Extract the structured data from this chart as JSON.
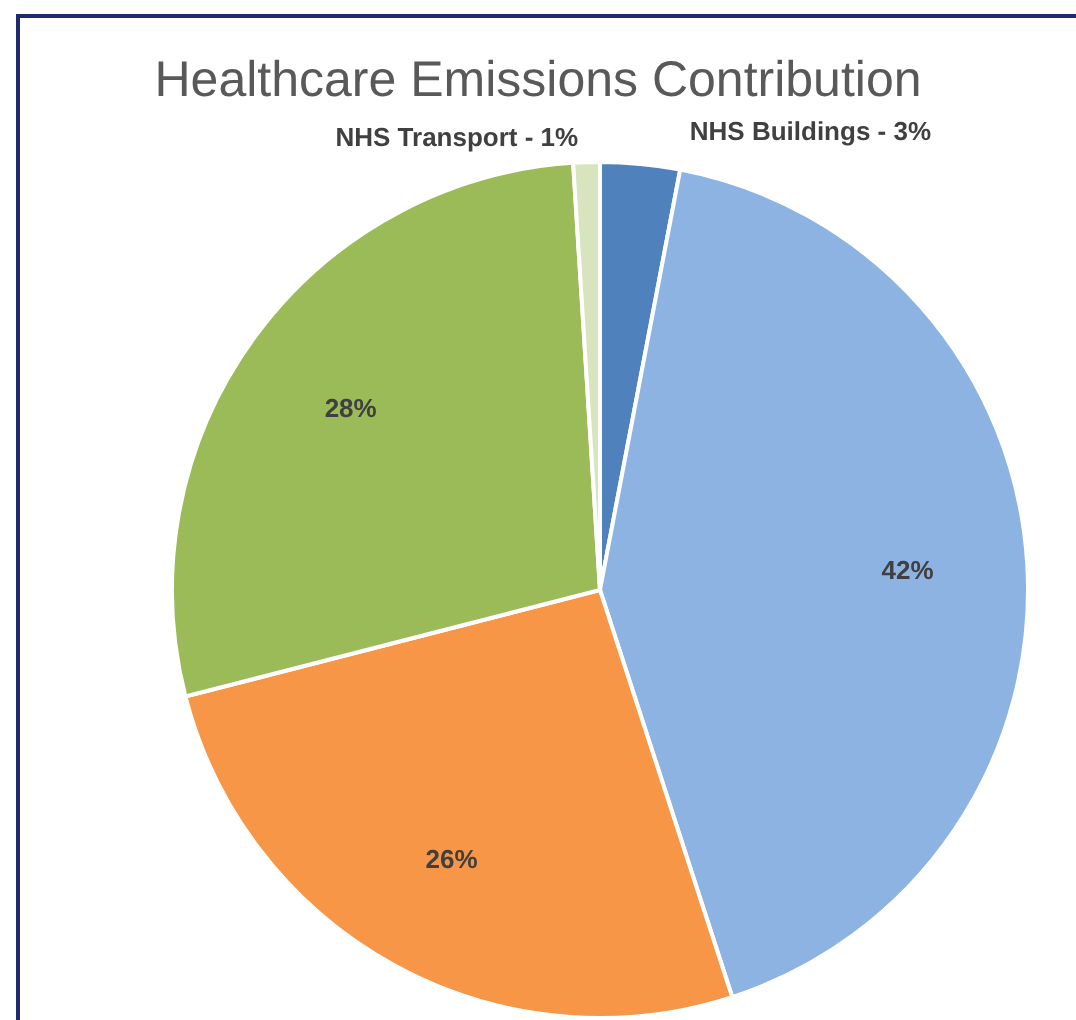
{
  "chart_data": {
    "type": "pie",
    "title": "Healthcare Emissions Contribution",
    "categories": [
      "NHS Buildings",
      null,
      null,
      null,
      "NHS Transport"
    ],
    "values": [
      3,
      42,
      26,
      28,
      1
    ],
    "colors": [
      "#4f81bd",
      "#8db3e2",
      "#f79646",
      "#9bbb59",
      "#d7e4bd"
    ],
    "value_labels": [
      "3%",
      "42%",
      "26%",
      "28%",
      "1%"
    ],
    "legend": false
  }
}
